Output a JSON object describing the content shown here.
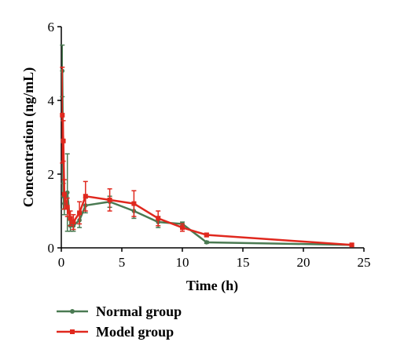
{
  "chart_data": {
    "type": "line",
    "xlabel": "Time (h)",
    "ylabel": "Concentration (ng/mL)",
    "xlim": [
      0,
      25
    ],
    "ylim": [
      0,
      6
    ],
    "x_ticks": [
      0,
      5,
      10,
      15,
      20,
      25
    ],
    "y_ticks": [
      0,
      2,
      4,
      6
    ],
    "x_tick_labels": [
      "0",
      "5",
      "10",
      "15",
      "20",
      "25"
    ],
    "y_tick_labels": [
      "0",
      "2",
      "4",
      "6"
    ],
    "grid": false,
    "legend_position": "bottom-left",
    "series": [
      {
        "name": "Normal group",
        "color": "#4a7a52",
        "marker": "circle",
        "x": [
          0.083,
          0.167,
          0.25,
          0.5,
          0.75,
          1,
          1.5,
          2,
          4,
          6,
          8,
          10,
          12,
          24
        ],
        "y": [
          4.8,
          1.4,
          1.2,
          1.5,
          0.6,
          0.6,
          0.75,
          1.15,
          1.25,
          1.0,
          0.7,
          0.65,
          0.15,
          0.08
        ],
        "err": [
          0.7,
          0.35,
          0.3,
          1.05,
          0.15,
          0.15,
          0.2,
          0.2,
          0.15,
          0.2,
          0.15,
          0.05,
          0.03,
          0.03
        ]
      },
      {
        "name": "Model group",
        "color": "#e0281e",
        "marker": "square",
        "x": [
          0.083,
          0.167,
          0.25,
          0.5,
          0.75,
          1,
          1.5,
          2,
          4,
          6,
          8,
          10,
          12,
          24
        ],
        "y": [
          3.6,
          2.9,
          1.45,
          1.1,
          0.8,
          0.7,
          0.95,
          1.4,
          1.3,
          1.2,
          0.8,
          0.55,
          0.35,
          0.08
        ],
        "err": [
          1.3,
          0.55,
          0.4,
          0.25,
          0.2,
          0.2,
          0.3,
          0.4,
          0.3,
          0.35,
          0.2,
          0.1,
          0.05,
          0.03
        ]
      }
    ]
  }
}
